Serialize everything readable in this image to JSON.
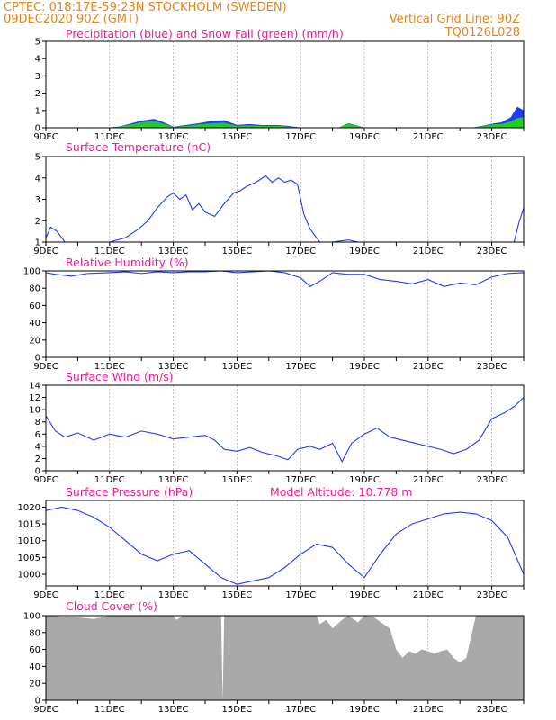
{
  "header": {
    "line1_left": "CPTEC:   018:17E-59:23N   STOCKHOLM (SWEDEN)",
    "line2_left": "09DEC2020 90Z (GMT)",
    "line1_right": "Vertical Grid Line: 90Z",
    "line2_right": "TQ0126L028"
  },
  "colors": {
    "header": "#e8821e",
    "title": "#ff1493",
    "line": "#1e3cff",
    "precip": "#1e3cff",
    "snow": "#22cc22",
    "cloud": "#a9a9a9",
    "grid": "#999999"
  },
  "x_axis": {
    "start": "09DEC",
    "end": "24DEC",
    "tick_labels": [
      "9DEC",
      "11DEC",
      "13DEC",
      "15DEC",
      "17DEC",
      "19DEC",
      "21DEC",
      "23DEC"
    ],
    "tick_days": [
      9,
      11,
      13,
      15,
      17,
      19,
      21,
      23
    ]
  },
  "chart_data": [
    {
      "type": "area",
      "title": "Precipitation (blue) and Snow Fall (green) (mm/h)",
      "ylim": [
        0,
        5
      ],
      "yticks": [
        0,
        1,
        2,
        3,
        4,
        5
      ],
      "series": [
        {
          "name": "Precipitation",
          "color": "#1e3cff",
          "x": [
            9,
            11,
            11.3,
            11.6,
            12,
            12.4,
            12.7,
            13,
            13.4,
            13.8,
            14.2,
            14.6,
            15,
            15.4,
            15.8,
            16.2,
            16.6,
            17,
            18.2,
            18.5,
            18.8,
            19,
            22.4,
            22.7,
            23,
            23.3,
            23.6,
            23.8,
            24
          ],
          "values": [
            0,
            0,
            0.06,
            0.2,
            0.4,
            0.5,
            0.3,
            0.05,
            0.15,
            0.25,
            0.38,
            0.42,
            0.15,
            0.2,
            0.14,
            0.15,
            0.1,
            0,
            0,
            0.25,
            0.1,
            0,
            0,
            0.1,
            0.22,
            0.3,
            0.6,
            1.2,
            1.0
          ]
        },
        {
          "name": "Snow Fall",
          "color": "#22cc22",
          "x": [
            9,
            11,
            11.3,
            11.6,
            12,
            12.4,
            12.7,
            13,
            13.4,
            13.8,
            14.2,
            14.6,
            15,
            15.4,
            15.8,
            16.2,
            16.6,
            17,
            18.2,
            18.5,
            18.8,
            19,
            22.4,
            22.7,
            23,
            23.3,
            23.6,
            23.8,
            24
          ],
          "values": [
            0,
            0,
            0.05,
            0.15,
            0.3,
            0.38,
            0.22,
            0.04,
            0.1,
            0.18,
            0.25,
            0.28,
            0.1,
            0.12,
            0.1,
            0.1,
            0.06,
            0,
            0,
            0.22,
            0.08,
            0,
            0,
            0.08,
            0.18,
            0.2,
            0.35,
            0.55,
            0.6
          ]
        }
      ]
    },
    {
      "type": "line",
      "title": "Surface Temperature (nC)",
      "ylim": [
        1,
        5
      ],
      "yticks": [
        1,
        2,
        3,
        4,
        5
      ],
      "series": [
        {
          "x": [
            9,
            9.15,
            9.35,
            9.6,
            9.9,
            10.2,
            11,
            11.5,
            11.9,
            12.2,
            12.5,
            12.8,
            13.0,
            13.2,
            13.4,
            13.6,
            13.8,
            14.0,
            14.3,
            14.6,
            14.9,
            15.1,
            15.3,
            15.6,
            15.9,
            16.1,
            16.3,
            16.5,
            16.7,
            16.9,
            17.1,
            17.3,
            17.6,
            18,
            18.5,
            18.8,
            19,
            23.7,
            23.85,
            24
          ],
          "values": [
            1.2,
            1.7,
            1.5,
            1.0,
            1.0,
            1.0,
            1.0,
            1.2,
            1.6,
            2.0,
            2.6,
            3.1,
            3.3,
            3.0,
            3.2,
            2.5,
            2.8,
            2.4,
            2.2,
            2.8,
            3.3,
            3.4,
            3.6,
            3.8,
            4.1,
            3.8,
            4.0,
            3.8,
            3.9,
            3.7,
            2.3,
            1.6,
            1.0,
            1.0,
            1.1,
            1.0,
            1.0,
            1.0,
            1.9,
            2.6
          ]
        }
      ]
    },
    {
      "type": "line",
      "title": "Relative Humidity (%)",
      "ylim": [
        0,
        100
      ],
      "yticks": [
        0,
        20,
        40,
        60,
        80,
        100
      ],
      "series": [
        {
          "x": [
            9,
            9.3,
            9.8,
            10.3,
            11,
            11.5,
            12,
            12.5,
            13,
            13.5,
            14,
            14.5,
            15,
            15.5,
            16,
            16.5,
            17,
            17.3,
            17.6,
            18,
            18.5,
            19,
            19.5,
            20,
            20.5,
            21,
            21.5,
            22,
            22.5,
            23,
            23.5,
            24
          ],
          "values": [
            98,
            96,
            94,
            97,
            98,
            99,
            97,
            99,
            98,
            99,
            99,
            100,
            98,
            99,
            100,
            98,
            92,
            82,
            88,
            98,
            96,
            96,
            90,
            88,
            85,
            90,
            82,
            86,
            84,
            93,
            97,
            98
          ]
        }
      ]
    },
    {
      "type": "line",
      "title": "Surface Wind (m/s)",
      "ylim": [
        0,
        14
      ],
      "yticks": [
        0,
        2,
        4,
        6,
        8,
        10,
        12,
        14
      ],
      "series": [
        {
          "x": [
            9,
            9.3,
            9.6,
            10,
            10.5,
            11,
            11.5,
            12,
            12.5,
            13,
            13.5,
            14,
            14.3,
            14.6,
            15,
            15.4,
            15.8,
            16.2,
            16.6,
            16.9,
            17.3,
            17.6,
            18,
            18.3,
            18.6,
            19,
            19.4,
            19.8,
            20.2,
            20.6,
            21,
            21.4,
            21.8,
            22.2,
            22.6,
            23,
            23.4,
            23.7,
            24
          ],
          "values": [
            9,
            6.5,
            5.5,
            6.2,
            5,
            6,
            5.5,
            6.5,
            6,
            5.2,
            5.5,
            5.8,
            5,
            3.5,
            3.2,
            3.8,
            3,
            2.5,
            1.8,
            3.5,
            4,
            3.5,
            4.5,
            1.5,
            4.5,
            6,
            7,
            5.5,
            5,
            4.5,
            4,
            3.5,
            2.8,
            3.5,
            5,
            8.5,
            9.5,
            10.5,
            12
          ]
        }
      ]
    },
    {
      "type": "line",
      "title": "Surface Pressure (hPa)",
      "annotation": "Model Altitude: 10.778 m",
      "ylim": [
        996.5,
        1022
      ],
      "yticks": [
        1000,
        1005,
        1010,
        1015,
        1020
      ],
      "series": [
        {
          "x": [
            9,
            9.5,
            10,
            10.5,
            11,
            11.5,
            12,
            12.5,
            13,
            13.5,
            14,
            14.5,
            15,
            15.5,
            16,
            16.5,
            17,
            17.5,
            18,
            18.5,
            19,
            19.5,
            20,
            20.5,
            21,
            21.5,
            22,
            22.5,
            23,
            23.5,
            24
          ],
          "values": [
            1019,
            1020,
            1019,
            1017,
            1014,
            1010,
            1006,
            1004,
            1006,
            1007,
            1003,
            999,
            997,
            998,
            999,
            1002,
            1006,
            1009,
            1008,
            1003,
            999,
            1006,
            1012,
            1015,
            1016.5,
            1018,
            1018.5,
            1018,
            1016,
            1011,
            1000
          ]
        }
      ]
    },
    {
      "type": "area",
      "title": "Cloud Cover (%)",
      "ylim": [
        0,
        100
      ],
      "yticks": [
        0,
        20,
        40,
        60,
        80,
        100
      ],
      "series": [
        {
          "x": [
            9,
            10,
            10.5,
            11,
            13,
            13.1,
            13.3,
            14.5,
            14.55,
            14.6,
            17.5,
            17.6,
            17.8,
            18,
            18.3,
            18.5,
            18.8,
            19,
            19.3,
            19.6,
            19.8,
            20,
            20.2,
            20.4,
            20.6,
            20.8,
            21,
            21.2,
            21.4,
            21.6,
            21.8,
            22,
            22.2,
            22.5,
            22.8,
            24
          ],
          "values": [
            100,
            98,
            96,
            100,
            100,
            95,
            100,
            100,
            0,
            100,
            100,
            90,
            95,
            85,
            95,
            100,
            92,
            100,
            98,
            90,
            85,
            60,
            50,
            58,
            55,
            60,
            58,
            55,
            58,
            60,
            50,
            45,
            50,
            100,
            100,
            100
          ]
        }
      ]
    }
  ]
}
